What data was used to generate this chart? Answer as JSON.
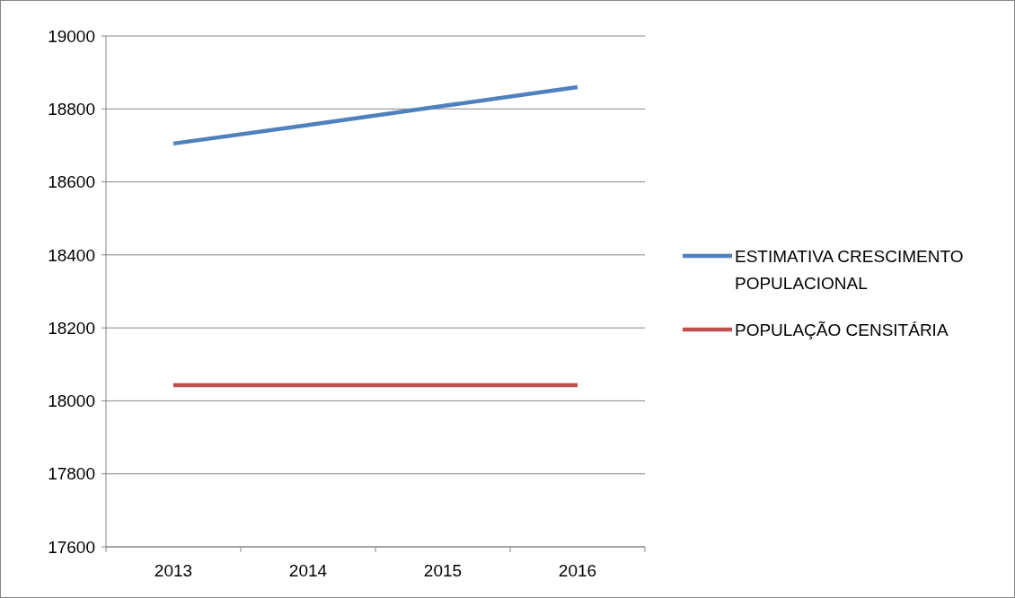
{
  "chart_data": {
    "type": "line",
    "categories": [
      "2013",
      "2014",
      "2015",
      "2016"
    ],
    "series": [
      {
        "name": "ESTIMATIVA CRESCIMENTO POPULACIONAL",
        "color": "#4f81bd",
        "values": [
          18705,
          18756,
          18808,
          18860
        ]
      },
      {
        "name": "POPULAÇÃO CENSITÁRIA",
        "color": "#c0504d",
        "values": [
          18043,
          18043,
          18043,
          18043
        ]
      }
    ],
    "ylim": [
      17600,
      19000
    ],
    "yticks": [
      17600,
      17800,
      18000,
      18200,
      18400,
      18600,
      18800,
      19000
    ],
    "grid": "y",
    "legend": "right",
    "marker": "none",
    "line_style": "solid"
  }
}
